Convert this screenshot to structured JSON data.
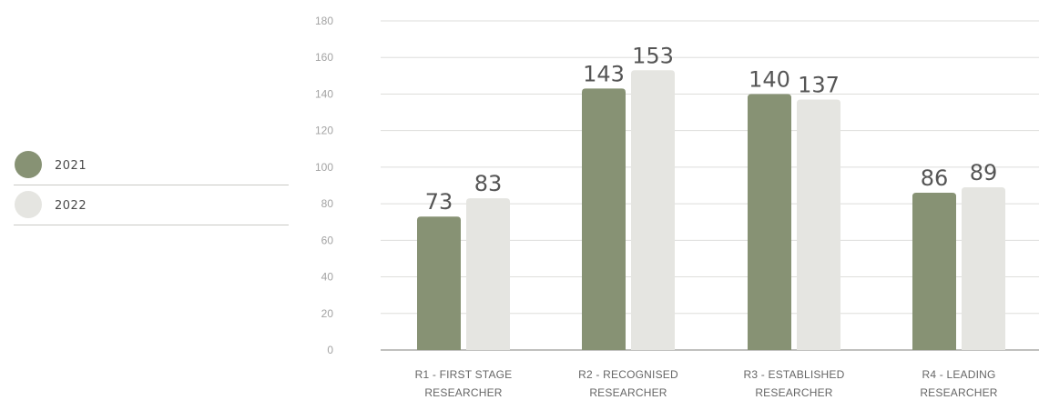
{
  "chart_data": {
    "type": "bar",
    "categories": [
      [
        "R1 - FIRST STAGE",
        "RESEARCHER"
      ],
      [
        "R2 - RECOGNISED",
        "RESEARCHER"
      ],
      [
        "R3 - ESTABLISHED",
        "RESEARCHER"
      ],
      [
        "R4 - LEADING",
        "RESEARCHER"
      ]
    ],
    "series": [
      {
        "name": "2021",
        "values": [
          73,
          143,
          140,
          86
        ],
        "color": "#879274"
      },
      {
        "name": "2022",
        "values": [
          83,
          153,
          137,
          89
        ],
        "color": "#e5e5e1"
      }
    ],
    "yticks": [
      0,
      20,
      40,
      60,
      80,
      100,
      120,
      140,
      160,
      180
    ],
    "ylim": [
      0,
      180
    ],
    "grid": true,
    "legend_position": "left"
  },
  "legend": [
    {
      "label": "2021",
      "color": "#879274"
    },
    {
      "label": "2022",
      "color": "#e5e5e1"
    }
  ]
}
